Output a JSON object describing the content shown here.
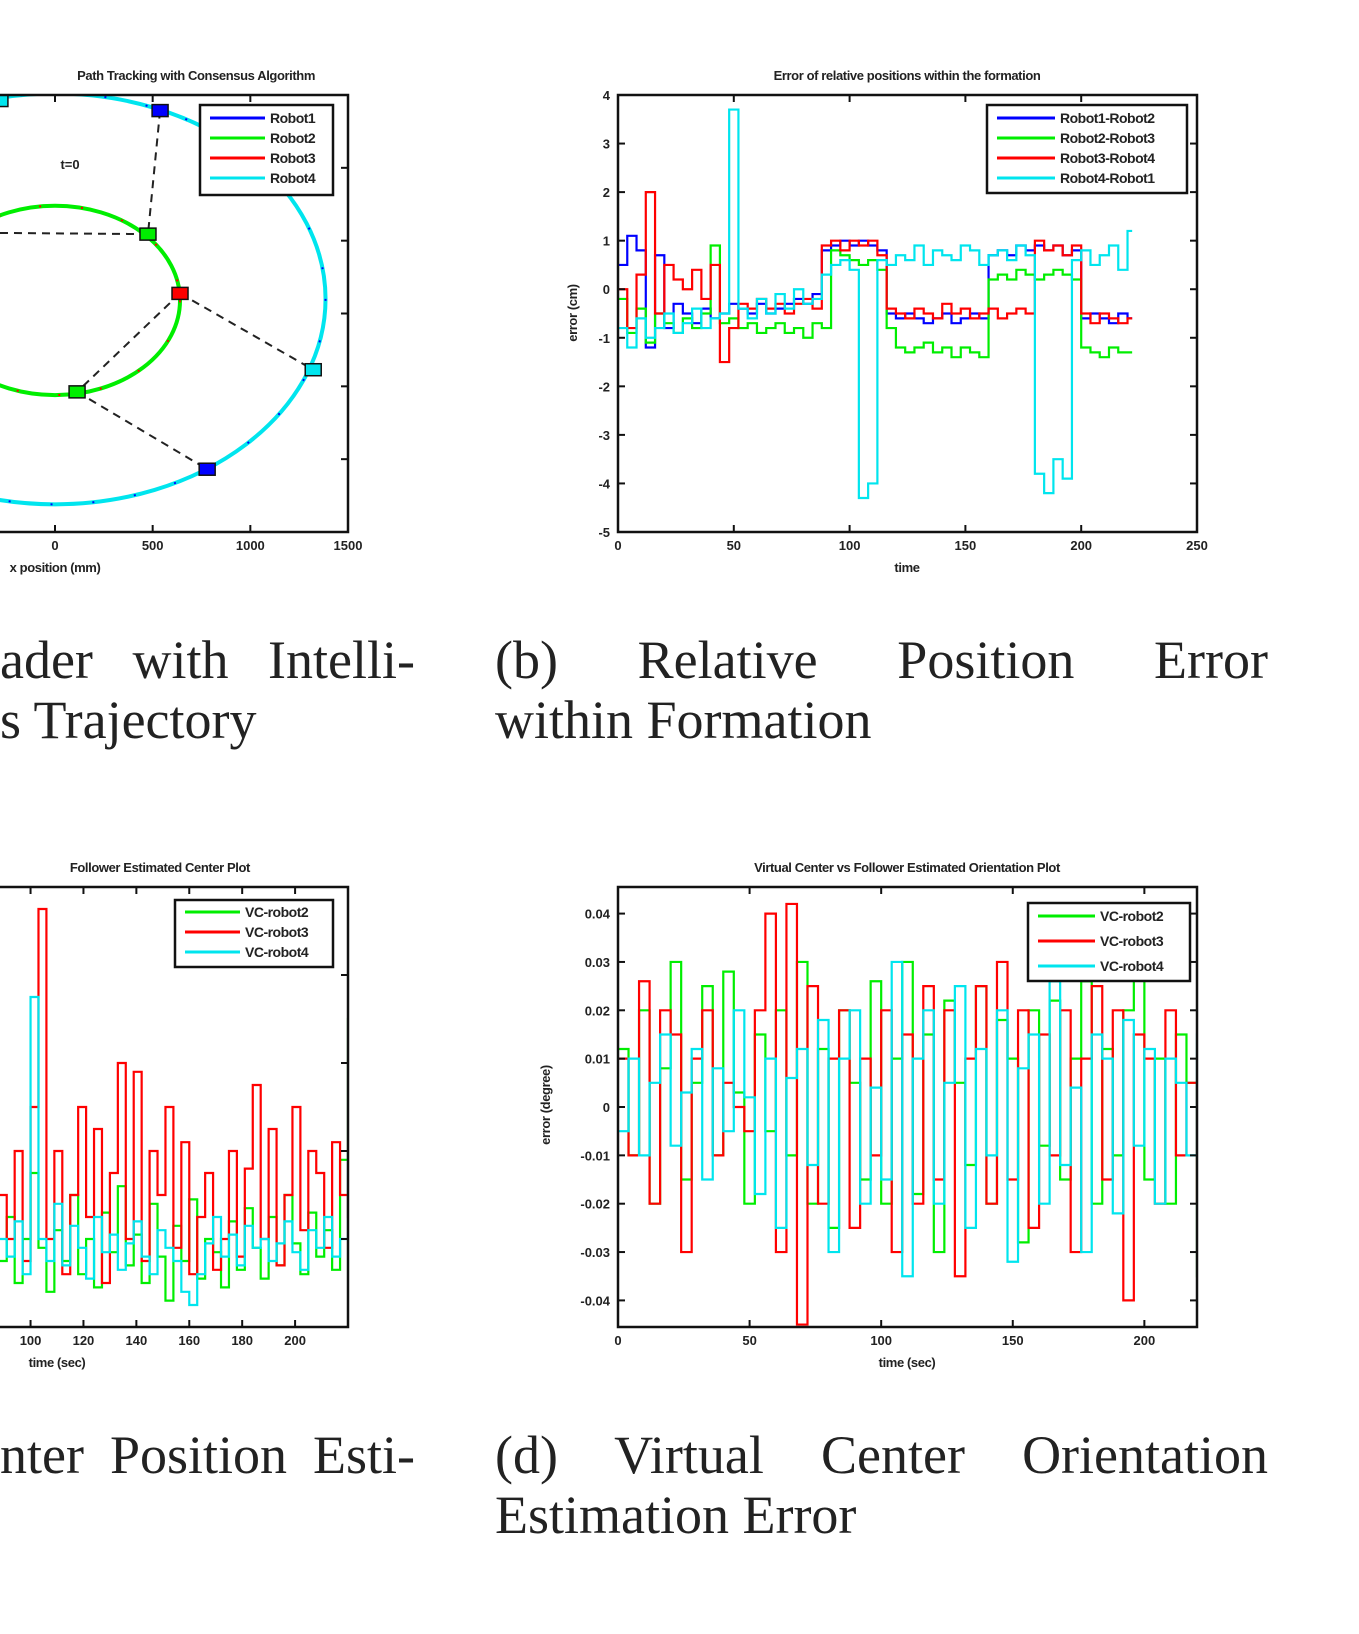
{
  "captions": {
    "a": {
      "line1": "ader with Intelli-",
      "line2": "s Trajectory"
    },
    "b": {
      "line1": "(b) Relative Position Error",
      "line2": "within Formation"
    },
    "c": {
      "line1": "nter Position Esti-"
    },
    "d": {
      "line1": "(d) Virtual Center Orientation",
      "line2": "Estimation Error"
    }
  },
  "chart_data": [
    {
      "id": "a",
      "type": "line",
      "title": "Path Tracking with Consensus Algorithm",
      "xlabel": "x position (mm)",
      "ylabel": "",
      "xlim": [
        -1500,
        1500
      ],
      "ylim": [
        -1500,
        1500
      ],
      "xticks": [
        {
          "v": 0,
          "label": "0"
        },
        {
          "v": 500,
          "label": "500"
        },
        {
          "v": 1000,
          "label": "1000"
        },
        {
          "v": 1500,
          "label": "1500"
        }
      ],
      "yticks": [
        {
          "v": -1000
        },
        {
          "v": -500
        },
        {
          "v": 0
        },
        {
          "v": 500
        },
        {
          "v": 1000
        }
      ],
      "legend": [
        "Robot1",
        "Robot2",
        "Robot3",
        "Robot4"
      ],
      "colors": [
        "#0000ff",
        "#00ee00",
        "#ff0000",
        "#00e5ee"
      ],
      "ellipses": [
        {
          "name": "outer-trajectory",
          "cx": 0,
          "cy": 100,
          "rx": 1385,
          "ry": 1410,
          "colors": [
            "#00e5ee",
            "#0000ff"
          ]
        },
        {
          "name": "inner-trajectory",
          "cx": 0,
          "cy": 90,
          "rx": 640,
          "ry": 650,
          "colors": [
            "#00ee00",
            "#ff0000"
          ]
        }
      ],
      "markers": [
        {
          "robot": 1,
          "x": 538,
          "y": 1393
        },
        {
          "robot": 1,
          "x": 779,
          "y": -1069
        },
        {
          "robot": 2,
          "x": 476,
          "y": 545
        },
        {
          "robot": 2,
          "x": 113,
          "y": -538
        },
        {
          "robot": 3,
          "x": 640,
          "y": 138
        },
        {
          "robot": 4,
          "x": 1322,
          "y": -386
        },
        {
          "robot": 4,
          "x": -282,
          "y": 1462
        }
      ],
      "links": [
        [
          [
            538,
            1393
          ],
          [
            476,
            545
          ]
        ],
        [
          [
            -1500,
            566
          ],
          [
            476,
            545
          ]
        ],
        [
          [
            640,
            138
          ],
          [
            113,
            -538
          ]
        ],
        [
          [
            640,
            138
          ],
          [
            1322,
            -386
          ]
        ],
        [
          [
            113,
            -538
          ],
          [
            779,
            -1069
          ]
        ]
      ],
      "annotation": {
        "text": "t=0",
        "x": 77,
        "y": 993
      }
    },
    {
      "id": "b",
      "type": "line",
      "title": "Error of relative positions within the formation",
      "xlabel": "time",
      "ylabel": "error (cm)",
      "xlim": [
        0,
        250
      ],
      "ylim": [
        -5,
        4
      ],
      "xticks": [
        {
          "v": 0,
          "label": "0"
        },
        {
          "v": 50,
          "label": "50"
        },
        {
          "v": 100,
          "label": "100"
        },
        {
          "v": 150,
          "label": "150"
        },
        {
          "v": 200,
          "label": "200"
        },
        {
          "v": 250,
          "label": "250"
        }
      ],
      "yticks": [
        {
          "v": -5,
          "label": "-5"
        },
        {
          "v": -4,
          "label": "-4"
        },
        {
          "v": -3,
          "label": "-3"
        },
        {
          "v": -2,
          "label": "-2"
        },
        {
          "v": -1,
          "label": "-1"
        },
        {
          "v": 0,
          "label": "0"
        },
        {
          "v": 1,
          "label": "1"
        },
        {
          "v": 2,
          "label": "2"
        },
        {
          "v": 3,
          "label": "3"
        },
        {
          "v": 4,
          "label": "4"
        }
      ],
      "legend": [
        "Robot1-Robot2",
        "Robot2-Robot3",
        "Robot3-Robot4",
        "Robot4-Robot1"
      ],
      "colors": [
        "#0000ff",
        "#00ee00",
        "#ff0000",
        "#00e5ee"
      ],
      "x_start": 0,
      "x_step": 4,
      "series": [
        {
          "name": "Robot1-Robot2",
          "y": [
            0.5,
            1.1,
            0.8,
            -1.2,
            0.7,
            -0.8,
            -0.3,
            -0.5,
            -0.7,
            -0.4,
            -0.6,
            -0.5,
            -0.3,
            -0.4,
            -0.5,
            -0.3,
            -0.5,
            -0.4,
            -0.3,
            -0.2,
            -0.3,
            -0.1,
            0.8,
            0.9,
            1.0,
            0.9,
            1.0,
            0.9,
            0.8,
            -0.5,
            -0.6,
            -0.5,
            -0.6,
            -0.7,
            -0.6,
            -0.5,
            -0.7,
            -0.6,
            -0.5,
            -0.6,
            0.7,
            0.8,
            0.7,
            0.9,
            0.8,
            0.9,
            0.8,
            0.9,
            0.7,
            0.8,
            -0.6,
            -0.5,
            -0.6,
            -0.7,
            -0.5,
            -0.6
          ]
        },
        {
          "name": "Robot2-Robot3",
          "y": [
            -0.2,
            -0.9,
            -0.4,
            -1.1,
            -0.5,
            -0.7,
            -0.9,
            -0.6,
            -0.8,
            -0.5,
            0.9,
            -0.7,
            -0.6,
            -0.8,
            -0.7,
            -0.9,
            -0.8,
            -0.7,
            -0.9,
            -0.8,
            -1.0,
            -0.7,
            -0.8,
            0.8,
            0.7,
            0.6,
            0.5,
            0.6,
            0.4,
            -0.8,
            -1.2,
            -1.3,
            -1.2,
            -1.1,
            -1.3,
            -1.2,
            -1.4,
            -1.2,
            -1.3,
            -1.4,
            0.2,
            0.3,
            0.2,
            0.4,
            0.3,
            0.2,
            0.3,
            0.4,
            0.3,
            0.2,
            -1.2,
            -1.3,
            -1.4,
            -1.2,
            -1.3,
            -1.3
          ]
        },
        {
          "name": "Robot3-Robot4",
          "y": [
            0.0,
            -0.8,
            0.3,
            2.0,
            -0.5,
            0.5,
            0.2,
            0.0,
            0.4,
            -0.2,
            0.5,
            -1.5,
            -0.8,
            -0.3,
            -0.4,
            -0.2,
            -0.4,
            -0.3,
            -0.5,
            -0.3,
            -0.2,
            -0.4,
            0.9,
            1.0,
            0.8,
            1.0,
            0.9,
            1.0,
            0.7,
            -0.4,
            -0.5,
            -0.6,
            -0.4,
            -0.5,
            -0.6,
            -0.3,
            -0.5,
            -0.4,
            -0.6,
            -0.5,
            -0.4,
            -0.6,
            -0.5,
            -0.4,
            -0.5,
            1.0,
            0.8,
            0.9,
            0.7,
            0.9,
            -0.5,
            -0.7,
            -0.5,
            -0.6,
            -0.7,
            -0.6
          ]
        },
        {
          "name": "Robot4-Robot1",
          "y": [
            -0.8,
            -1.2,
            -0.6,
            -1.0,
            -0.8,
            -0.5,
            -0.9,
            -0.7,
            -0.4,
            -0.8,
            -0.6,
            -0.5,
            3.7,
            -0.4,
            -0.6,
            -0.2,
            -0.5,
            -0.1,
            -0.4,
            0.0,
            -0.3,
            -0.2,
            0.3,
            0.5,
            0.6,
            0.4,
            -4.3,
            -4.0,
            0.6,
            0.5,
            0.7,
            0.6,
            0.9,
            0.5,
            0.8,
            0.7,
            0.6,
            0.9,
            0.8,
            0.5,
            0.7,
            0.8,
            0.6,
            0.9,
            0.7,
            -3.8,
            -4.2,
            -3.5,
            -3.9,
            0.6,
            0.8,
            0.5,
            0.7,
            0.9,
            0.4,
            1.2
          ]
        }
      ]
    },
    {
      "id": "c",
      "type": "line",
      "title": "Follower Estimated Center Plot",
      "xlabel": "time (sec)",
      "ylabel": "",
      "xlim": [
        0,
        220
      ],
      "ylim": [
        0,
        10
      ],
      "xticks": [
        {
          "v": 100,
          "label": "100"
        },
        {
          "v": 120,
          "label": "120"
        },
        {
          "v": 140,
          "label": "140"
        },
        {
          "v": 160,
          "label": "160"
        },
        {
          "v": 180,
          "label": "180"
        },
        {
          "v": 200,
          "label": "200"
        }
      ],
      "yticks": [
        {
          "v": 2
        },
        {
          "v": 4
        },
        {
          "v": 6
        },
        {
          "v": 8
        }
      ],
      "legend": [
        "VC-robot2",
        "VC-robot3",
        "VC-robot4"
      ],
      "colors": [
        "#00ee00",
        "#ff0000",
        "#00e5ee"
      ],
      "x_start": 88,
      "x_step": 3,
      "series": [
        {
          "name": "VC-robot2",
          "y": [
            1.5,
            2.5,
            1,
            2,
            3.5,
            1.8,
            0.8,
            2.2,
            1.5,
            3,
            1.2,
            2,
            0.9,
            2.6,
            1.7,
            3.2,
            1.4,
            2.1,
            1,
            2.8,
            1.6,
            0.6,
            2.3,
            1.5,
            2.9,
            1.1,
            2,
            1.7,
            0.9,
            2.4,
            1.3,
            2.7,
            1.8,
            1.1,
            2.5,
            1.4,
            3,
            1.9,
            1.2,
            2.6,
            1.6,
            2.2,
            1.3,
            3.8,
            7
          ]
        },
        {
          "name": "VC-robot3",
          "y": [
            3,
            2,
            4,
            1.5,
            5,
            9.5,
            2,
            4,
            1.2,
            3,
            5,
            2.5,
            4.5,
            1,
            3.5,
            6,
            2,
            5.8,
            1.5,
            4,
            3,
            5,
            1.8,
            4.2,
            1.2,
            2.5,
            3.5,
            1.3,
            2,
            4,
            1.6,
            3.6,
            5.5,
            2,
            4.5,
            1.4,
            3,
            5,
            2.2,
            4,
            3.5,
            1.8,
            4.2,
            3,
            2.5
          ]
        },
        {
          "name": "VC-robot4",
          "y": [
            2,
            1.6,
            2.4,
            1.2,
            7.5,
            2,
            1.5,
            2.8,
            1.4,
            2.3,
            1.8,
            1.1,
            2.5,
            1.7,
            2.1,
            1.3,
            1.9,
            2.4,
            1.6,
            1.2,
            2.2,
            1.8,
            1.5,
            0.8,
            0.5,
            1.2,
            1.9,
            2.5,
            1.6,
            2.1,
            1.4,
            2.3,
            1.8,
            2,
            1.5,
            1.9,
            2.4,
            1.7,
            1.3,
            2.2,
            1.8,
            2.5,
            1.6,
            2,
            4
          ]
        }
      ]
    },
    {
      "id": "d",
      "type": "line",
      "title": "Virtual Center vs Follower Estimated Orientation Plot",
      "xlabel": "time (sec)",
      "ylabel": "error (degree)",
      "xlim": [
        0,
        220
      ],
      "ylim": [
        -0.0455,
        0.0455
      ],
      "xticks": [
        {
          "v": 0,
          "label": "0"
        },
        {
          "v": 50,
          "label": "50"
        },
        {
          "v": 100,
          "label": "100"
        },
        {
          "v": 150,
          "label": "150"
        },
        {
          "v": 200,
          "label": "200"
        }
      ],
      "yticks": [
        {
          "v": -0.04,
          "label": "-0.04"
        },
        {
          "v": -0.03,
          "label": "-0.03"
        },
        {
          "v": -0.02,
          "label": "-0.02"
        },
        {
          "v": -0.01,
          "label": "-0.01"
        },
        {
          "v": 0,
          "label": "0"
        },
        {
          "v": 0.01,
          "label": "0.01"
        },
        {
          "v": 0.02,
          "label": "0.02"
        },
        {
          "v": 0.03,
          "label": "0.03"
        },
        {
          "v": 0.04,
          "label": "0.04"
        }
      ],
      "legend": [
        "VC-robot2",
        "VC-robot3",
        "VC-robot4"
      ],
      "colors": [
        "#00ee00",
        "#ff0000",
        "#00e5ee"
      ],
      "x_start": 0,
      "x_step": 4,
      "series": [
        {
          "name": "VC-robot2",
          "y": [
            0.012,
            -0.01,
            0.02,
            -0.02,
            0.008,
            0.03,
            -0.015,
            0.005,
            0.025,
            -0.01,
            0.028,
            0.003,
            -0.02,
            0.015,
            -0.005,
            0.02,
            -0.01,
            0.03,
            -0.02,
            0.012,
            -0.025,
            0.02,
            0.005,
            -0.015,
            0.026,
            -0.02,
            0.01,
            0.03,
            -0.018,
            0.015,
            -0.03,
            0.022,
            0.005,
            -0.012,
            0.025,
            -0.02,
            0.018,
            0.01,
            -0.028,
            0.02,
            -0.008,
            0.022,
            -0.015,
            0.01,
            0.026,
            -0.02,
            0.012,
            -0.01,
            0.02,
            0.028,
            -0.015,
            0.01,
            -0.02,
            0.015,
            0.005,
            -0.035
          ]
        },
        {
          "name": "VC-robot3",
          "y": [
            0.01,
            -0.01,
            0.026,
            -0.02,
            0.02,
            0.015,
            -0.03,
            0.01,
            0.02,
            -0.01,
            0.005,
            0,
            -0.005,
            0.02,
            0.04,
            -0.03,
            0.042,
            -0.045,
            0.025,
            -0.02,
            0.01,
            0.02,
            -0.025,
            0.01,
            -0.01,
            0.02,
            -0.03,
            0.015,
            -0.02,
            0.025,
            -0.015,
            0.02,
            -0.035,
            0.01,
            0.025,
            -0.02,
            0.03,
            -0.015,
            0.02,
            -0.025,
            0.015,
            -0.01,
            0.02,
            -0.03,
            0.01,
            0.025,
            -0.015,
            0.02,
            -0.04,
            0.015,
            0.01,
            -0.02,
            0.02,
            -0.01,
            0.005,
            -0.02
          ]
        },
        {
          "name": "VC-robot4",
          "y": [
            -0.005,
            0.01,
            -0.01,
            0.005,
            0.015,
            -0.008,
            0.003,
            0.012,
            -0.015,
            0.008,
            -0.005,
            0.02,
            0.002,
            -0.018,
            0.01,
            -0.025,
            0.006,
            0.012,
            -0.012,
            0.018,
            -0.03,
            0.01,
            0.02,
            -0.02,
            0.004,
            -0.015,
            0.03,
            -0.035,
            0.01,
            0.02,
            -0.02,
            0.005,
            0.025,
            -0.025,
            0.012,
            -0.01,
            0.02,
            -0.032,
            0.008,
            0.015,
            -0.02,
            0.026,
            -0.012,
            0.004,
            -0.03,
            0.015,
            0.01,
            -0.022,
            0.018,
            -0.008,
            0.012,
            -0.02,
            0.01,
            0.005,
            -0.01,
            0.015
          ]
        }
      ]
    }
  ]
}
